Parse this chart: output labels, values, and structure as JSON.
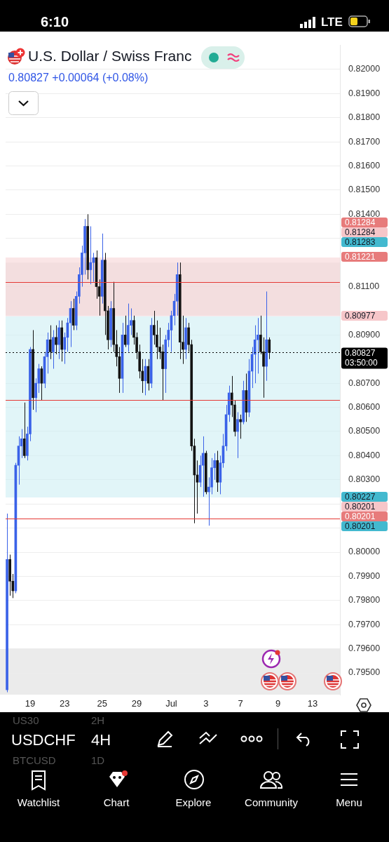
{
  "chart_data": {
    "type": "candlestick",
    "title": "U.S. Dollar / Swiss Franc",
    "subtitle": "0.80827 +0.00064 (+0.08%)",
    "categories": [
      null,
      null,
      null,
      null,
      null,
      null,
      null,
      null,
      "19",
      null,
      null,
      null,
      null,
      null,
      null,
      null,
      null,
      null,
      null,
      null,
      "23",
      null,
      null,
      null,
      null,
      null,
      null,
      null,
      null,
      null,
      null,
      null,
      null,
      "25",
      null,
      null,
      null,
      null,
      null,
      null,
      null,
      null,
      null,
      null,
      null,
      "29",
      null,
      null,
      null,
      null,
      null,
      null,
      null,
      null,
      null,
      null,
      null,
      "Jul",
      null,
      null,
      null,
      null,
      null,
      null,
      null,
      null,
      null,
      null,
      null,
      "3",
      null,
      null,
      null,
      null,
      null,
      null,
      null,
      null,
      null,
      null,
      null,
      "7",
      null,
      null,
      null,
      null,
      null,
      null,
      null,
      null,
      null,
      null,
      null,
      null,
      "9",
      null,
      null,
      null,
      null,
      null,
      null,
      null,
      null,
      null,
      null,
      null,
      "13",
      null,
      null,
      null,
      null,
      null,
      null,
      null,
      null,
      null
    ],
    "ohlc": [
      [
        0.7943,
        0.8016,
        0.7942,
        0.7997
      ],
      [
        0.7997,
        0.7999,
        0.7982,
        0.7988
      ],
      [
        0.7988,
        0.7991,
        0.7981,
        0.7984
      ],
      [
        0.7984,
        0.8037,
        0.7983,
        0.8036
      ],
      [
        0.8036,
        0.8048,
        0.8028,
        0.8044
      ],
      [
        0.8044,
        0.8051,
        0.8039,
        0.8047
      ],
      [
        0.8047,
        0.8062,
        0.8039,
        0.804
      ],
      [
        0.804,
        0.8052,
        0.8038,
        0.8049
      ],
      [
        0.8049,
        0.8085,
        0.8046,
        0.8084
      ],
      [
        0.8084,
        0.8092,
        0.8059,
        0.8064
      ],
      [
        0.8064,
        0.8072,
        0.8058,
        0.807
      ],
      [
        0.807,
        0.8078,
        0.8066,
        0.8076
      ],
      [
        0.8076,
        0.8077,
        0.8063,
        0.807
      ],
      [
        0.807,
        0.8083,
        0.8068,
        0.8081
      ],
      [
        0.8081,
        0.8091,
        0.8074,
        0.8088
      ],
      [
        0.8088,
        0.8094,
        0.808,
        0.8083
      ],
      [
        0.8083,
        0.8092,
        0.8076,
        0.8089
      ],
      [
        0.8089,
        0.8094,
        0.8082,
        0.8086
      ],
      [
        0.8086,
        0.8096,
        0.808,
        0.8093
      ],
      [
        0.8093,
        0.8096,
        0.8079,
        0.8084
      ],
      [
        0.8084,
        0.8091,
        0.8078,
        0.8089
      ],
      [
        0.8089,
        0.8097,
        0.8083,
        0.8095
      ],
      [
        0.8095,
        0.8104,
        0.8085,
        0.8101
      ],
      [
        0.8101,
        0.8105,
        0.8092,
        0.8094
      ],
      [
        0.8094,
        0.8108,
        0.8092,
        0.8106
      ],
      [
        0.8106,
        0.8118,
        0.8103,
        0.8115
      ],
      [
        0.8115,
        0.8127,
        0.811,
        0.8124
      ],
      [
        0.8124,
        0.8138,
        0.8115,
        0.8135
      ],
      [
        0.8135,
        0.814,
        0.8113,
        0.8117
      ],
      [
        0.8117,
        0.8135,
        0.8111,
        0.812
      ],
      [
        0.812,
        0.8124,
        0.8112,
        0.8122
      ],
      [
        0.8122,
        0.8125,
        0.8105,
        0.811
      ],
      [
        0.811,
        0.8113,
        0.8098,
        0.8106
      ],
      [
        0.8106,
        0.8132,
        0.8103,
        0.8121
      ],
      [
        0.8121,
        0.8124,
        0.809,
        0.81
      ],
      [
        0.81,
        0.8102,
        0.8084,
        0.8088
      ],
      [
        0.8088,
        0.8104,
        0.8085,
        0.8101
      ],
      [
        0.8101,
        0.8112,
        0.8083,
        0.8086
      ],
      [
        0.8086,
        0.8092,
        0.8077,
        0.8081
      ],
      [
        0.8081,
        0.8085,
        0.8066,
        0.8072
      ],
      [
        0.8072,
        0.8095,
        0.8066,
        0.809
      ],
      [
        0.809,
        0.8098,
        0.8085,
        0.8086
      ],
      [
        0.8086,
        0.8103,
        0.8083,
        0.8094
      ],
      [
        0.8094,
        0.8101,
        0.809,
        0.8096
      ],
      [
        0.8096,
        0.8098,
        0.8086,
        0.8089
      ],
      [
        0.8089,
        0.8091,
        0.808,
        0.8083
      ],
      [
        0.8083,
        0.8086,
        0.8072,
        0.8075
      ],
      [
        0.8075,
        0.808,
        0.8066,
        0.8071
      ],
      [
        0.8071,
        0.808,
        0.8065,
        0.8077
      ],
      [
        0.8077,
        0.808,
        0.8067,
        0.807
      ],
      [
        0.807,
        0.8097,
        0.8068,
        0.8094
      ],
      [
        0.8094,
        0.81,
        0.8086,
        0.809
      ],
      [
        0.809,
        0.8096,
        0.808,
        0.8085
      ],
      [
        0.8085,
        0.8093,
        0.808,
        0.8083
      ],
      [
        0.8083,
        0.8086,
        0.8063,
        0.8076
      ],
      [
        0.8076,
        0.809,
        0.8066,
        0.8088
      ],
      [
        0.8088,
        0.8095,
        0.8085,
        0.8092
      ],
      [
        0.8092,
        0.81,
        0.8083,
        0.8098
      ],
      [
        0.8098,
        0.8107,
        0.8094,
        0.8104
      ],
      [
        0.8104,
        0.812,
        0.8098,
        0.8115
      ],
      [
        0.8115,
        0.812,
        0.808,
        0.8087
      ],
      [
        0.8087,
        0.8098,
        0.8078,
        0.8084
      ],
      [
        0.8084,
        0.8097,
        0.808,
        0.8093
      ],
      [
        0.8093,
        0.8095,
        0.8083,
        0.8086
      ],
      [
        0.8086,
        0.8088,
        0.8042,
        0.8044
      ],
      [
        0.8044,
        0.8047,
        0.8012,
        0.8032
      ],
      [
        0.8032,
        0.8038,
        0.8016,
        0.8029
      ],
      [
        0.8029,
        0.804,
        0.8027,
        0.8036
      ],
      [
        0.8036,
        0.8048,
        0.8023,
        0.8041
      ],
      [
        0.8041,
        0.8042,
        0.8024,
        0.8025
      ],
      [
        0.8025,
        0.8031,
        0.8011,
        0.8027
      ],
      [
        0.8027,
        0.8039,
        0.8024,
        0.8035
      ],
      [
        0.8035,
        0.8041,
        0.803,
        0.8038
      ],
      [
        0.8038,
        0.8042,
        0.8025,
        0.8029
      ],
      [
        0.8029,
        0.804,
        0.8024,
        0.8037
      ],
      [
        0.8037,
        0.8049,
        0.8035,
        0.8044
      ],
      [
        0.8044,
        0.8061,
        0.8042,
        0.8057
      ],
      [
        0.8057,
        0.8069,
        0.8054,
        0.8066
      ],
      [
        0.8066,
        0.8073,
        0.8056,
        0.8061
      ],
      [
        0.8061,
        0.8063,
        0.8048,
        0.805
      ],
      [
        0.805,
        0.8058,
        0.8039,
        0.8055
      ],
      [
        0.8055,
        0.8057,
        0.8047,
        0.8054
      ],
      [
        0.8054,
        0.8071,
        0.8053,
        0.8067
      ],
      [
        0.8067,
        0.8074,
        0.8054,
        0.8058
      ],
      [
        0.8058,
        0.808,
        0.8056,
        0.8075
      ],
      [
        0.8075,
        0.8085,
        0.8068,
        0.8082
      ],
      [
        0.8082,
        0.8094,
        0.807,
        0.8088
      ],
      [
        0.8088,
        0.8097,
        0.8074,
        0.809
      ],
      [
        0.809,
        0.8098,
        0.8082,
        0.8083
      ],
      [
        0.8083,
        0.8089,
        0.8064,
        0.8077
      ],
      [
        0.8077,
        0.8108,
        0.8071,
        0.8088
      ],
      [
        0.8088,
        0.8089,
        0.808,
        0.80827
      ],
      null,
      null,
      null,
      null,
      null,
      null,
      null,
      null,
      null,
      null,
      null,
      null,
      null,
      null,
      null,
      null,
      null,
      null,
      null,
      null,
      null,
      null,
      null,
      null
    ],
    "colors": [
      "#3a62e8",
      "#131313",
      "#131313",
      "#3a62e8",
      "#3a62e8",
      "#3a62e8",
      "#131313",
      "#3a62e8",
      "#3a62e8",
      "#131313",
      "#3a62e8",
      "#3a62e8",
      "#131313",
      "#3a62e8",
      "#3a62e8",
      "#131313",
      "#3a62e8",
      "#131313",
      "#3a62e8",
      "#131313",
      "#3a62e8",
      "#3a62e8",
      "#3a62e8",
      "#131313",
      "#3a62e8",
      "#3a62e8",
      "#3a62e8",
      "#3a62e8",
      "#131313",
      "#3a62e8",
      "#3a62e8",
      "#131313",
      "#131313",
      "#3a62e8",
      "#131313",
      "#131313",
      "#3a62e8",
      "#131313",
      "#131313",
      "#131313",
      "#3a62e8",
      "#131313",
      "#3a62e8",
      "#3a62e8",
      "#131313",
      "#131313",
      "#131313",
      "#131313",
      "#3a62e8",
      "#131313",
      "#3a62e8",
      "#131313",
      "#131313",
      "#131313",
      "#131313",
      "#3a62e8",
      "#3a62e8",
      "#3a62e8",
      "#3a62e8",
      "#3a62e8",
      "#131313",
      "#131313",
      "#3a62e8",
      "#131313",
      "#131313",
      "#131313",
      "#131313",
      "#3a62e8",
      "#3a62e8",
      "#131313",
      "#3a62e8",
      "#3a62e8",
      "#3a62e8",
      "#131313",
      "#3a62e8",
      "#3a62e8",
      "#3a62e8",
      "#3a62e8",
      "#131313",
      "#131313",
      "#3a62e8",
      "#131313",
      "#3a62e8",
      "#131313",
      "#3a62e8",
      "#3a62e8",
      "#3a62e8",
      "#3a62e8",
      "#131313",
      "#131313",
      "#3a62e8",
      "#131313",
      null,
      null,
      null,
      null,
      null,
      null,
      null,
      null,
      null,
      null,
      null,
      null,
      null,
      null,
      null,
      null,
      null,
      null,
      null,
      null,
      null,
      null,
      null,
      null
    ],
    "ylim": [
      0.7941,
      0.821
    ],
    "yticks": [
      {
        "value": 0.795,
        "label": "0.79500"
      },
      {
        "value": 0.796,
        "label": "0.79600"
      },
      {
        "value": 0.797,
        "label": "0.79700"
      },
      {
        "value": 0.798,
        "label": "0.79800"
      },
      {
        "value": 0.799,
        "label": "0.79900"
      },
      {
        "value": 0.8,
        "label": "0.80000"
      },
      {
        "value": 0.801,
        "label": null
      },
      {
        "value": 0.802,
        "label": null
      },
      {
        "value": 0.803,
        "label": "0.80300"
      },
      {
        "value": 0.804,
        "label": "0.80400"
      },
      {
        "value": 0.805,
        "label": "0.80500"
      },
      {
        "value": 0.806,
        "label": "0.80600"
      },
      {
        "value": 0.807,
        "label": "0.80700"
      },
      {
        "value": 0.809,
        "label": "0.80900"
      },
      {
        "value": 0.811,
        "label": "0.81100"
      },
      {
        "value": 0.813,
        "label": null
      },
      {
        "value": 0.814,
        "label": "0.81400"
      },
      {
        "value": 0.815,
        "label": "0.81500"
      },
      {
        "value": 0.816,
        "label": "0.81600"
      },
      {
        "value": 0.817,
        "label": "0.81700"
      },
      {
        "value": 0.818,
        "label": "0.81800"
      },
      {
        "value": 0.819,
        "label": "0.81900"
      },
      {
        "value": 0.82,
        "label": "0.82000"
      }
    ],
    "grid": "y",
    "bands": [
      {
        "axis": "y",
        "from": 0.8098,
        "to": 0.812,
        "color": "#e3e3e3"
      },
      {
        "axis": "y",
        "from": 0.80977,
        "to": 0.81221,
        "color": "#f6d3d6"
      },
      {
        "axis": "y",
        "from": 0.80227,
        "to": 0.80977,
        "color": "#cdeef3"
      }
    ],
    "ref_lines": [
      {
        "axis": "y",
        "value": 0.80827,
        "label": "0.80827\n03:50:00",
        "color": "#000000",
        "line_style": "dotted"
      },
      {
        "axis": "y",
        "value": 0.8112,
        "color": "#e53935",
        "line_style": "solid"
      },
      {
        "axis": "y",
        "value": 0.8063,
        "color": "#e53935",
        "line_style": "solid"
      },
      {
        "axis": "y",
        "value": 0.8014,
        "color": "#e53935",
        "line_style": "solid"
      }
    ],
    "annotations": [
      "6:10",
      "LTE",
      "US30",
      "2H",
      "USDCHF",
      "4H",
      "BTCUSD",
      "1D",
      "Watchlist",
      "Chart",
      "Explore",
      "Community",
      "Menu",
      "0.81284",
      "0.81284",
      "0.81283",
      "0.81221",
      "0.80977",
      "0.80227",
      "0.80201",
      "0.80201",
      "0.80201"
    ]
  }
}
